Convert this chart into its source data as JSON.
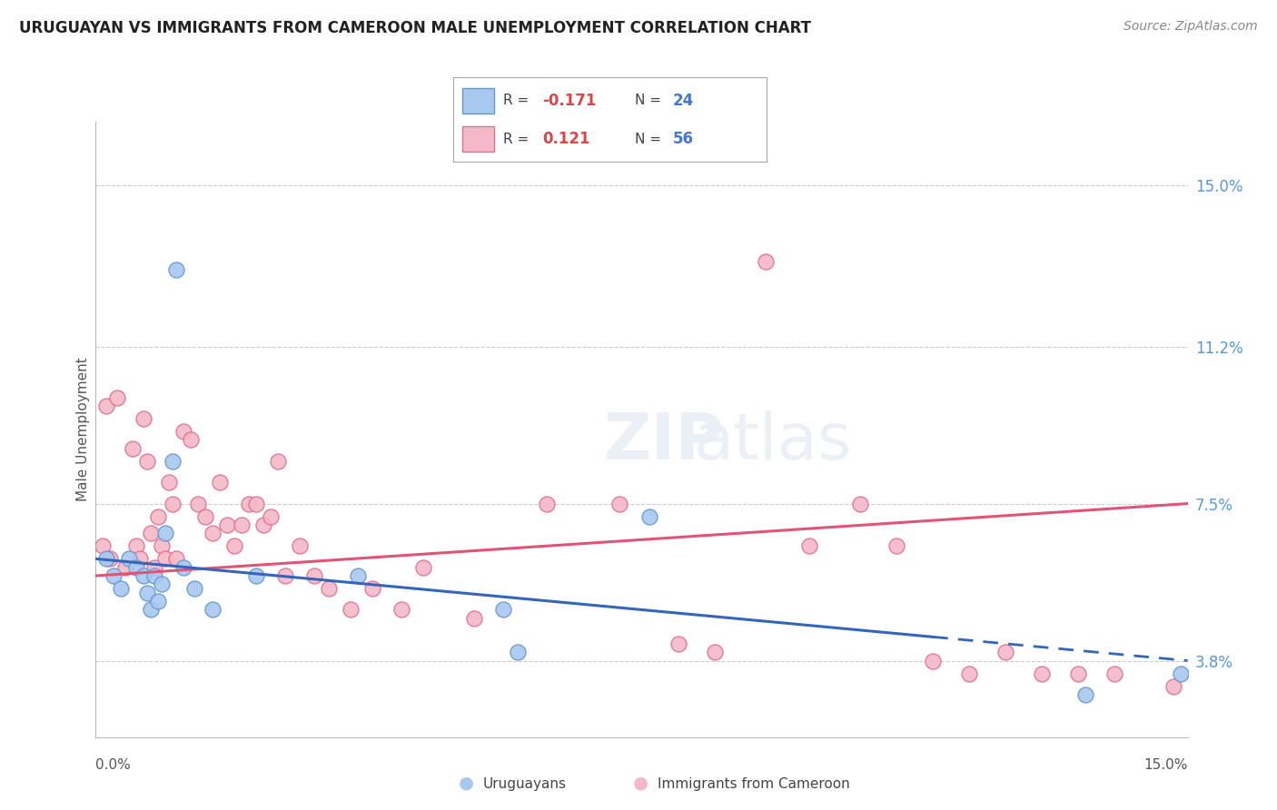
{
  "title": "URUGUAYAN VS IMMIGRANTS FROM CAMEROON MALE UNEMPLOYMENT CORRELATION CHART",
  "source": "Source: ZipAtlas.com",
  "ylabel": "Male Unemployment",
  "y_ticks": [
    3.8,
    7.5,
    11.2,
    15.0
  ],
  "y_tick_labels": [
    "3.8%",
    "7.5%",
    "11.2%",
    "15.0%"
  ],
  "x_range": [
    0,
    15
  ],
  "y_range": [
    2.0,
    16.5
  ],
  "blue_color": "#A8C8F0",
  "blue_edge": "#6699CC",
  "pink_color": "#F5B8C8",
  "pink_edge": "#E07090",
  "trend_blue": "#3366BB",
  "trend_pink": "#E05575",
  "blue_x": [
    0.15,
    0.25,
    0.35,
    0.45,
    0.55,
    0.65,
    0.7,
    0.75,
    0.8,
    0.85,
    0.9,
    0.95,
    1.05,
    1.1,
    1.2,
    1.35,
    1.6,
    2.2,
    3.6,
    5.6,
    5.8,
    7.6,
    13.6,
    14.9
  ],
  "blue_y": [
    6.2,
    5.8,
    5.5,
    6.2,
    6.0,
    5.8,
    5.4,
    5.0,
    5.8,
    5.2,
    5.6,
    6.8,
    8.5,
    13.0,
    6.0,
    5.5,
    5.0,
    5.8,
    5.8,
    5.0,
    4.0,
    7.2,
    3.0,
    3.5
  ],
  "pink_x": [
    0.1,
    0.15,
    0.2,
    0.3,
    0.4,
    0.5,
    0.55,
    0.6,
    0.65,
    0.7,
    0.75,
    0.8,
    0.85,
    0.9,
    0.95,
    1.0,
    1.05,
    1.1,
    1.2,
    1.3,
    1.4,
    1.5,
    1.6,
    1.7,
    1.8,
    1.9,
    2.0,
    2.1,
    2.2,
    2.3,
    2.4,
    2.5,
    2.6,
    2.8,
    3.0,
    3.2,
    3.5,
    3.8,
    4.2,
    4.5,
    5.2,
    6.2,
    7.2,
    8.0,
    8.5,
    9.2,
    9.8,
    10.5,
    11.0,
    11.5,
    12.0,
    12.5,
    13.0,
    13.5,
    14.0,
    14.8
  ],
  "pink_y": [
    6.5,
    9.8,
    6.2,
    10.0,
    6.0,
    8.8,
    6.5,
    6.2,
    9.5,
    8.5,
    6.8,
    6.0,
    7.2,
    6.5,
    6.2,
    8.0,
    7.5,
    6.2,
    9.2,
    9.0,
    7.5,
    7.2,
    6.8,
    8.0,
    7.0,
    6.5,
    7.0,
    7.5,
    7.5,
    7.0,
    7.2,
    8.5,
    5.8,
    6.5,
    5.8,
    5.5,
    5.0,
    5.5,
    5.0,
    6.0,
    4.8,
    7.5,
    7.5,
    4.2,
    4.0,
    13.2,
    6.5,
    7.5,
    6.5,
    3.8,
    3.5,
    4.0,
    3.5,
    3.5,
    3.5,
    3.2
  ]
}
